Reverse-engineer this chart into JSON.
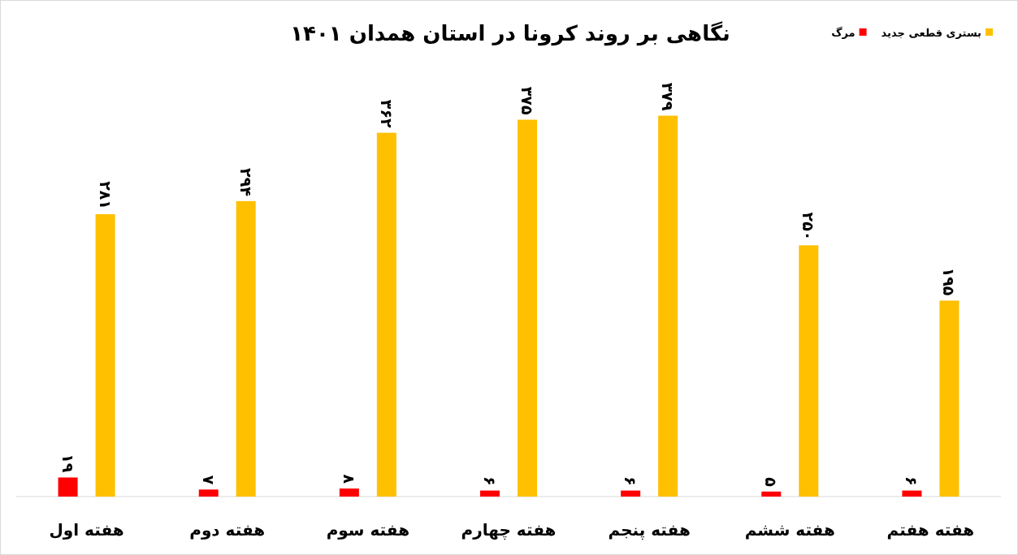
{
  "chart_data": {
    "type": "bar",
    "title": "نگاهی بر روند کرونا در استان همدان ۱۴۰۱",
    "categories": [
      "هفته اول",
      "هفته دوم",
      "هفته سوم",
      "هفته چهارم",
      "هفته پنجم",
      "هفته ششم",
      "هفته هفتم"
    ],
    "series": [
      {
        "name": "مرگ",
        "color": "#ff0000",
        "values": [
          19,
          7,
          8,
          6,
          6,
          5,
          6
        ],
        "value_labels": [
          "۱۹",
          "۷",
          "۸",
          "۶",
          "۶",
          "۵",
          "۶"
        ]
      },
      {
        "name": "بستری قطعی جدید",
        "color": "#ffc000",
        "values": [
          281,
          294,
          362,
          375,
          379,
          250,
          195
        ],
        "value_labels": [
          "۲۸۱",
          "۲۹۴",
          "۳۶۲",
          "۳۷۵",
          "۳۷۹",
          "۲۵۰",
          "۱۹۵"
        ]
      }
    ],
    "legend": "top right",
    "grid": false
  }
}
